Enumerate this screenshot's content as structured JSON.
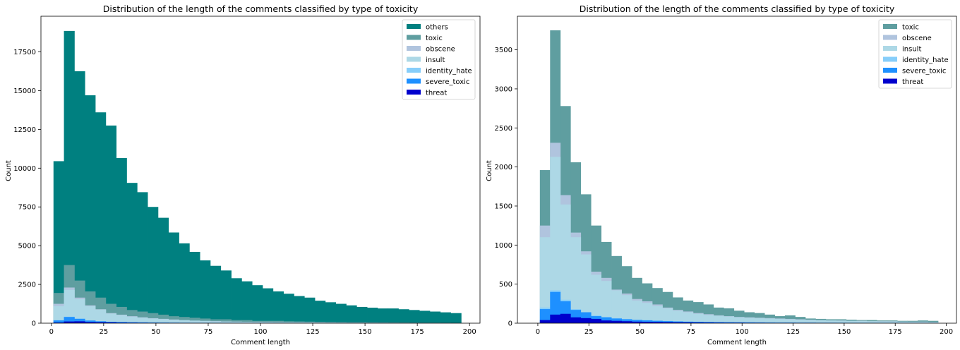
{
  "chart_data": [
    {
      "type": "bar",
      "title": "Distribution of the length of the comments classified by type of toxicity",
      "xlabel": "Comment length",
      "ylabel": "Count",
      "xlim": [
        -5,
        205
      ],
      "ylim": [
        0,
        19800
      ],
      "x_ticks": [
        0,
        25,
        50,
        75,
        100,
        125,
        150,
        175,
        200
      ],
      "y_ticks": [
        0,
        2500,
        5000,
        7500,
        10000,
        12500,
        15000,
        17500
      ],
      "legend_position": "top-right",
      "bin_width": 5,
      "bin_starts": [
        1,
        6,
        11,
        16,
        21,
        26,
        31,
        36,
        41,
        46,
        51,
        56,
        61,
        66,
        71,
        76,
        81,
        86,
        91,
        96,
        101,
        106,
        111,
        116,
        121,
        126,
        131,
        136,
        141,
        146,
        151,
        156,
        161,
        166,
        171,
        176,
        181,
        186,
        191
      ],
      "series": [
        {
          "name": "others",
          "color": "#008080",
          "values": [
            10450,
            18850,
            16250,
            14700,
            13600,
            12750,
            10650,
            9050,
            8450,
            7500,
            6800,
            5850,
            5150,
            4600,
            4050,
            3700,
            3400,
            2900,
            2700,
            2450,
            2250,
            2050,
            1900,
            1750,
            1650,
            1450,
            1350,
            1250,
            1150,
            1050,
            1000,
            950,
            950,
            900,
            850,
            800,
            750,
            700,
            650
          ]
        },
        {
          "name": "toxic",
          "color": "#5f9ea0",
          "values": [
            1950,
            3750,
            2750,
            2050,
            1650,
            1250,
            1050,
            850,
            750,
            650,
            550,
            450,
            400,
            350,
            300,
            250,
            250,
            200,
            200,
            150,
            150,
            150,
            120,
            110,
            100,
            90,
            80,
            70,
            60,
            60,
            55,
            50,
            50,
            45,
            40,
            35,
            35,
            30,
            25
          ]
        },
        {
          "name": "obscene",
          "color": "#b0c4de",
          "values": [
            1250,
            2300,
            1650,
            1150,
            900,
            650,
            550,
            450,
            380,
            320,
            280,
            240,
            200,
            170,
            150,
            130,
            110,
            100,
            90,
            80,
            75,
            70,
            65,
            60,
            55,
            50,
            45,
            40,
            35,
            35,
            30,
            30,
            25,
            25,
            25,
            20,
            20,
            20,
            15
          ]
        },
        {
          "name": "insult",
          "color": "#add8e6",
          "values": [
            1100,
            2150,
            1550,
            1100,
            880,
            620,
            520,
            420,
            360,
            300,
            260,
            220,
            190,
            160,
            140,
            120,
            105,
            95,
            85,
            75,
            70,
            65,
            60,
            55,
            50,
            45,
            40,
            38,
            35,
            32,
            30,
            28,
            25,
            23,
            22,
            20,
            18,
            17,
            15
          ]
        },
        {
          "name": "identity_hate",
          "color": "#87cefa",
          "values": [
            200,
            420,
            300,
            180,
            130,
            100,
            80,
            65,
            55,
            45,
            40,
            35,
            30,
            25,
            22,
            20,
            18,
            16,
            14,
            12,
            11,
            10,
            9,
            8,
            8,
            7,
            7,
            6,
            6,
            5,
            5,
            5,
            4,
            4,
            4,
            3,
            3,
            3,
            3
          ]
        },
        {
          "name": "severe_toxic",
          "color": "#1e90ff",
          "values": [
            180,
            400,
            280,
            170,
            120,
            90,
            75,
            60,
            50,
            42,
            36,
            30,
            26,
            22,
            19,
            17,
            15,
            13,
            12,
            11,
            10,
            9,
            8,
            7,
            7,
            6,
            6,
            5,
            5,
            5,
            4,
            4,
            4,
            3,
            3,
            3,
            3,
            2,
            2
          ]
        },
        {
          "name": "threat",
          "color": "#0000cd",
          "values": [
            40,
            110,
            120,
            70,
            60,
            50,
            35,
            30,
            25,
            20,
            18,
            15,
            13,
            11,
            10,
            9,
            8,
            7,
            6,
            6,
            5,
            5,
            4,
            4,
            4,
            3,
            3,
            3,
            3,
            2,
            2,
            2,
            2,
            2,
            2,
            1,
            1,
            1,
            1
          ]
        }
      ]
    },
    {
      "type": "bar",
      "title": "Distribution of the length of the comments classified by type of toxicity",
      "xlabel": "Comment length",
      "ylabel": "Count",
      "xlim": [
        -10,
        205
      ],
      "ylim": [
        0,
        3930
      ],
      "x_ticks": [
        0,
        25,
        50,
        75,
        100,
        125,
        150,
        175,
        200
      ],
      "y_ticks": [
        0,
        500,
        1000,
        1500,
        2000,
        2500,
        3000,
        3500
      ],
      "legend_position": "top-right",
      "bin_width": 5,
      "bin_starts": [
        1,
        6,
        11,
        16,
        21,
        26,
        31,
        36,
        41,
        46,
        51,
        56,
        61,
        66,
        71,
        76,
        81,
        86,
        91,
        96,
        101,
        106,
        111,
        116,
        121,
        126,
        131,
        136,
        141,
        146,
        151,
        156,
        161,
        166,
        171,
        176,
        181,
        186,
        191
      ],
      "series": [
        {
          "name": "toxic",
          "color": "#5f9ea0",
          "values": [
            1960,
            3750,
            2780,
            2060,
            1650,
            1250,
            1040,
            860,
            730,
            580,
            510,
            450,
            400,
            330,
            290,
            270,
            240,
            200,
            190,
            160,
            140,
            130,
            110,
            90,
            100,
            80,
            60,
            55,
            50,
            50,
            45,
            40,
            40,
            35,
            35,
            30,
            30,
            35,
            30
          ]
        },
        {
          "name": "obscene",
          "color": "#b0c4de",
          "values": [
            1250,
            2310,
            1640,
            1160,
            920,
            660,
            580,
            430,
            380,
            310,
            280,
            240,
            200,
            170,
            150,
            130,
            115,
            100,
            90,
            80,
            75,
            70,
            65,
            60,
            55,
            50,
            45,
            40,
            35,
            35,
            30,
            30,
            25,
            25,
            25,
            20,
            20,
            20,
            15
          ]
        },
        {
          "name": "insult",
          "color": "#add8e6",
          "values": [
            1100,
            2130,
            1520,
            1100,
            880,
            620,
            540,
            420,
            360,
            290,
            260,
            220,
            190,
            160,
            140,
            120,
            105,
            95,
            85,
            75,
            70,
            65,
            60,
            55,
            50,
            45,
            40,
            38,
            35,
            32,
            30,
            28,
            25,
            23,
            22,
            20,
            18,
            17,
            15
          ]
        },
        {
          "name": "identity_hate",
          "color": "#87cefa",
          "values": [
            200,
            420,
            300,
            180,
            130,
            100,
            80,
            65,
            55,
            45,
            40,
            35,
            30,
            25,
            22,
            20,
            18,
            16,
            14,
            12,
            11,
            10,
            9,
            8,
            8,
            7,
            7,
            6,
            6,
            5,
            5,
            5,
            4,
            4,
            4,
            3,
            3,
            3,
            3
          ]
        },
        {
          "name": "severe_toxic",
          "color": "#1e90ff",
          "values": [
            180,
            400,
            280,
            170,
            140,
            90,
            75,
            60,
            50,
            42,
            36,
            30,
            26,
            22,
            19,
            17,
            15,
            13,
            12,
            11,
            10,
            9,
            8,
            7,
            7,
            6,
            6,
            5,
            5,
            5,
            4,
            4,
            4,
            3,
            3,
            3,
            3,
            2,
            2
          ]
        },
        {
          "name": "threat",
          "color": "#0000cd",
          "values": [
            40,
            110,
            120,
            75,
            65,
            55,
            35,
            30,
            25,
            20,
            18,
            15,
            13,
            11,
            10,
            9,
            8,
            7,
            6,
            6,
            5,
            5,
            4,
            4,
            4,
            3,
            3,
            3,
            3,
            2,
            2,
            2,
            2,
            2,
            2,
            1,
            1,
            1,
            1
          ]
        }
      ]
    }
  ]
}
